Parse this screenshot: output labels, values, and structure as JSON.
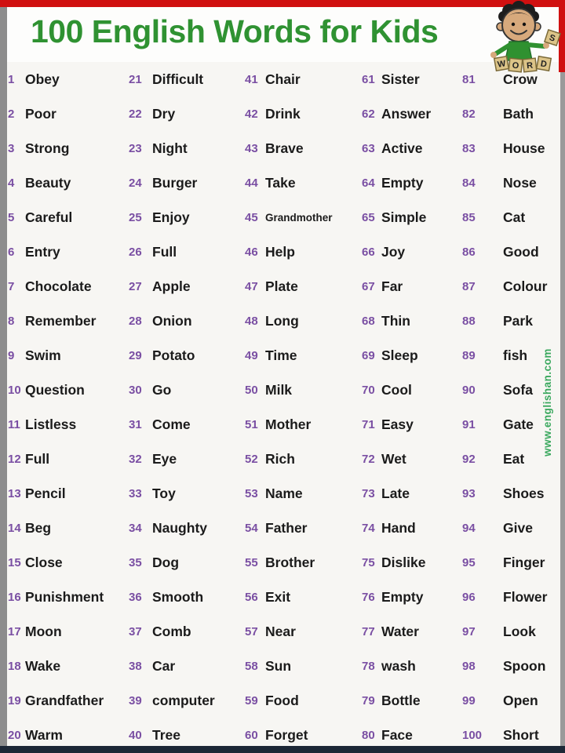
{
  "page": {
    "title": "100 English Words for Kids",
    "watermark": "www.englishan.com"
  },
  "clipart": {
    "description": "cartoon-kid-holding-letter-tiles",
    "tiles": [
      "W",
      "O",
      "R",
      "D"
    ],
    "extra_tile": "S"
  },
  "colors": {
    "title_green": "#2f9232",
    "number_purple": "#7a4fa3",
    "word_black": "#1b1b1b",
    "border_red": "#d01010",
    "border_gray": "#8d8d8d",
    "border_bottom_dark": "#1c2736",
    "watermark_green": "#3aa85e",
    "tile_tan": "#dcc488"
  },
  "words": [
    {
      "n": 1,
      "word": "Obey"
    },
    {
      "n": 2,
      "word": "Poor"
    },
    {
      "n": 3,
      "word": "Strong"
    },
    {
      "n": 4,
      "word": "Beauty"
    },
    {
      "n": 5,
      "word": "Careful"
    },
    {
      "n": 6,
      "word": "Entry"
    },
    {
      "n": 7,
      "word": "Chocolate"
    },
    {
      "n": 8,
      "word": "Remember"
    },
    {
      "n": 9,
      "word": "Swim"
    },
    {
      "n": 10,
      "word": "Question"
    },
    {
      "n": 11,
      "word": "Listless"
    },
    {
      "n": 12,
      "word": "Full"
    },
    {
      "n": 13,
      "word": "Pencil"
    },
    {
      "n": 14,
      "word": "Beg"
    },
    {
      "n": 15,
      "word": "Close"
    },
    {
      "n": 16,
      "word": "Punishment"
    },
    {
      "n": 17,
      "word": "Moon"
    },
    {
      "n": 18,
      "word": "Wake"
    },
    {
      "n": 19,
      "word": "Grandfather"
    },
    {
      "n": 20,
      "word": "Warm"
    },
    {
      "n": 21,
      "word": "Difficult"
    },
    {
      "n": 22,
      "word": "Dry"
    },
    {
      "n": 23,
      "word": "Night"
    },
    {
      "n": 24,
      "word": "Burger"
    },
    {
      "n": 25,
      "word": "Enjoy"
    },
    {
      "n": 26,
      "word": "Full"
    },
    {
      "n": 27,
      "word": "Apple"
    },
    {
      "n": 28,
      "word": "Onion"
    },
    {
      "n": 29,
      "word": "Potato"
    },
    {
      "n": 30,
      "word": "Go"
    },
    {
      "n": 31,
      "word": "Come"
    },
    {
      "n": 32,
      "word": "Eye"
    },
    {
      "n": 33,
      "word": "Toy"
    },
    {
      "n": 34,
      "word": "Naughty"
    },
    {
      "n": 35,
      "word": "Dog"
    },
    {
      "n": 36,
      "word": "Smooth"
    },
    {
      "n": 37,
      "word": "Comb"
    },
    {
      "n": 38,
      "word": "Car"
    },
    {
      "n": 39,
      "word": "computer"
    },
    {
      "n": 40,
      "word": "Tree"
    },
    {
      "n": 41,
      "word": "Chair"
    },
    {
      "n": 42,
      "word": "Drink"
    },
    {
      "n": 43,
      "word": "Brave"
    },
    {
      "n": 44,
      "word": "Take"
    },
    {
      "n": 45,
      "word": "Grandmother"
    },
    {
      "n": 46,
      "word": "Help"
    },
    {
      "n": 47,
      "word": "Plate"
    },
    {
      "n": 48,
      "word": "Long"
    },
    {
      "n": 49,
      "word": "Time"
    },
    {
      "n": 50,
      "word": "Milk"
    },
    {
      "n": 51,
      "word": "Mother"
    },
    {
      "n": 52,
      "word": "Rich"
    },
    {
      "n": 53,
      "word": "Name"
    },
    {
      "n": 54,
      "word": "Father"
    },
    {
      "n": 55,
      "word": "Brother"
    },
    {
      "n": 56,
      "word": "Exit"
    },
    {
      "n": 57,
      "word": "Near"
    },
    {
      "n": 58,
      "word": "Sun"
    },
    {
      "n": 59,
      "word": "Food"
    },
    {
      "n": 60,
      "word": "Forget"
    },
    {
      "n": 61,
      "word": "Sister"
    },
    {
      "n": 62,
      "word": "Answer"
    },
    {
      "n": 63,
      "word": "Active"
    },
    {
      "n": 64,
      "word": "Empty"
    },
    {
      "n": 65,
      "word": "Simple"
    },
    {
      "n": 66,
      "word": "Joy"
    },
    {
      "n": 67,
      "word": "Far"
    },
    {
      "n": 68,
      "word": "Thin"
    },
    {
      "n": 69,
      "word": "Sleep"
    },
    {
      "n": 70,
      "word": "Cool"
    },
    {
      "n": 71,
      "word": "Easy"
    },
    {
      "n": 72,
      "word": "Wet"
    },
    {
      "n": 73,
      "word": "Late"
    },
    {
      "n": 74,
      "word": "Hand"
    },
    {
      "n": 75,
      "word": "Dislike"
    },
    {
      "n": 76,
      "word": "Empty"
    },
    {
      "n": 77,
      "word": "Water"
    },
    {
      "n": 78,
      "word": "wash"
    },
    {
      "n": 79,
      "word": "Bottle"
    },
    {
      "n": 80,
      "word": "Face"
    },
    {
      "n": 81,
      "word": "Crow"
    },
    {
      "n": 82,
      "word": "Bath"
    },
    {
      "n": 83,
      "word": "House"
    },
    {
      "n": 84,
      "word": "Nose"
    },
    {
      "n": 85,
      "word": "Cat"
    },
    {
      "n": 86,
      "word": "Good"
    },
    {
      "n": 87,
      "word": "Colour"
    },
    {
      "n": 88,
      "word": "Park"
    },
    {
      "n": 89,
      "word": "fish"
    },
    {
      "n": 90,
      "word": "Sofa"
    },
    {
      "n": 91,
      "word": "Gate"
    },
    {
      "n": 92,
      "word": "Eat"
    },
    {
      "n": 93,
      "word": "Shoes"
    },
    {
      "n": 94,
      "word": "Give"
    },
    {
      "n": 95,
      "word": "Finger"
    },
    {
      "n": 96,
      "word": "Flower"
    },
    {
      "n": 97,
      "word": "Look"
    },
    {
      "n": 98,
      "word": "Spoon"
    },
    {
      "n": 99,
      "word": "Open"
    },
    {
      "n": 100,
      "word": "Short"
    }
  ]
}
